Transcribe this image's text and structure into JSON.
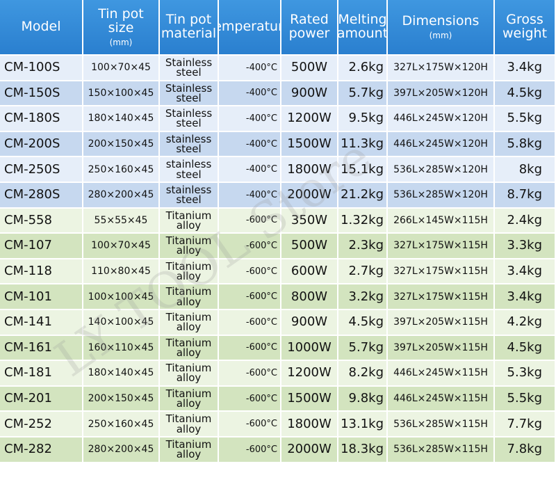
{
  "table": {
    "header": [
      [
        "Model"
      ],
      [
        "Tin pot size",
        "(mm)"
      ],
      [
        "Tin pot",
        "material"
      ],
      [
        "Temperature"
      ],
      [
        "Rated",
        "power"
      ],
      [
        "Melting",
        "amount"
      ],
      [
        "Dimensions",
        "(mm)"
      ],
      [
        "Gross",
        "weight"
      ]
    ],
    "rows": [
      [
        "CM-100S",
        "100×70×45",
        "Stainless steel",
        "-400°C",
        "500W",
        "2.6kg",
        "327L×175W×120H",
        "3.4kg"
      ],
      [
        "CM-150S",
        "150×100×45",
        "Stainless steel",
        "-400°C",
        "900W",
        "5.7kg",
        "397L×205W×120H",
        "4.5kg"
      ],
      [
        "CM-180S",
        "180×140×45",
        "Stainless steel",
        "-400°C",
        "1200W",
        "9.5kg",
        "446L×245W×120H",
        "5.5kg"
      ],
      [
        "CM-200S",
        "200×150×45",
        "stainless steel",
        "-400°C",
        "1500W",
        "11.3kg",
        "446L×245W×120H",
        "5.8kg"
      ],
      [
        "CM-250S",
        "250×160×45",
        "stainless steel",
        "-400°C",
        "1800W",
        "15.1kg",
        "536L×285W×120H",
        "8kg"
      ],
      [
        "CM-280S",
        "280×200×45",
        "stainless steel",
        "-400°C",
        "2000W",
        "21.2kg",
        "536L×285W×120H",
        "8.7kg"
      ],
      [
        "CM-558",
        "55×55×45",
        "Titanium alloy",
        "-600°C",
        "350W",
        "1.32kg",
        "266L×145W×115H",
        "2.4kg"
      ],
      [
        "CM-107",
        "100×70×45",
        "Titanium alloy",
        "-600°C",
        "500W",
        "2.3kg",
        "327L×175W×115H",
        "3.3kg"
      ],
      [
        "CM-118",
        "110×80×45",
        "Titanium alloy",
        "-600°C",
        "600W",
        "2.7kg",
        "327L×175W×115H",
        "3.4kg"
      ],
      [
        "CM-101",
        "100×100×45",
        "Titanium alloy",
        "-600°C",
        "800W",
        "3.2kg",
        "327L×175W×115H",
        "3.4kg"
      ],
      [
        "CM-141",
        "140×100×45",
        "Titanium alloy",
        "-600°C",
        "900W",
        "4.5kg",
        "397L×205W×115H",
        "4.2kg"
      ],
      [
        "CM-161",
        "160×110×45",
        "Titanium alloy",
        "-600°C",
        "1000W",
        "5.7kg",
        "397L×205W×115H",
        "4.5kg"
      ],
      [
        "CM-181",
        "180×140×45",
        "Titanium alloy",
        "-600°C",
        "1200W",
        "8.2kg",
        "446L×245W×115H",
        "5.3kg"
      ],
      [
        "CM-201",
        "200×150×45",
        "Titanium alloy",
        "-600°C",
        "1500W",
        "9.8kg",
        "446L×245W×115H",
        "5.5kg"
      ],
      [
        "CM-252",
        "250×160×45",
        "Titanium alloy",
        "-600°C",
        "1800W",
        "13.1kg",
        "536L×285W×115H",
        "7.7kg"
      ],
      [
        "CM-282",
        "280×200×45",
        "Titanium alloy",
        "-600°C",
        "2000W",
        "18.3kg",
        "536L×285W×115H",
        "7.8kg"
      ]
    ]
  },
  "watermark": "LY TOOL Store"
}
